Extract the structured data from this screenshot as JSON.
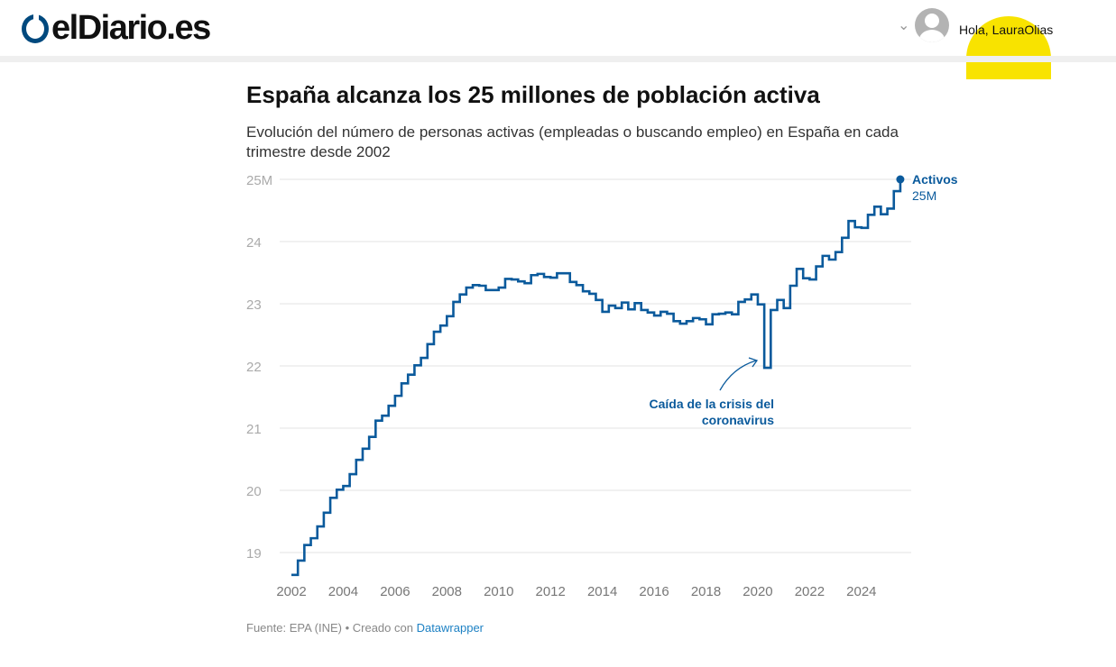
{
  "header": {
    "logo": "elDiario.es",
    "greeting": "Hola, LauraOlias"
  },
  "title": "España alcanza los 25 millones de población activa",
  "subtitle": "Evolución del número de personas activas (empleadas o buscando empleo) en España en cada trimestre desde 2002",
  "footer": {
    "source": "Fuente: EPA (INE) • Creado con ",
    "link": "Datawrapper"
  },
  "colors": {
    "line": "#0a5a9c",
    "grid": "#e3e3e3",
    "axis_text": "#aaaaaa",
    "highlight": "#f8e300"
  },
  "chart_data": {
    "type": "line",
    "step": true,
    "x_start": "2002 Q1",
    "frequency": "quarterly",
    "yunit": "millones",
    "ylim": [
      18.6,
      25
    ],
    "yticks": [
      19,
      20,
      21,
      22,
      23,
      24,
      25
    ],
    "ytick_labels": [
      "19",
      "20",
      "21",
      "22",
      "23",
      "24",
      "25M"
    ],
    "xticks": [
      2002,
      2004,
      2006,
      2008,
      2010,
      2012,
      2014,
      2016,
      2018,
      2020,
      2022,
      2024
    ],
    "grid": true,
    "series": [
      {
        "name": "Activos",
        "values": [
          18.64,
          18.87,
          19.12,
          19.23,
          19.42,
          19.64,
          19.88,
          20.01,
          20.07,
          20.26,
          20.49,
          20.67,
          20.86,
          21.12,
          21.2,
          21.36,
          21.52,
          21.72,
          21.86,
          22.01,
          22.13,
          22.35,
          22.55,
          22.65,
          22.8,
          23.03,
          23.15,
          23.26,
          23.3,
          23.29,
          23.22,
          23.22,
          23.26,
          23.4,
          23.39,
          23.36,
          23.33,
          23.46,
          23.48,
          23.43,
          23.42,
          23.49,
          23.49,
          23.35,
          23.3,
          23.2,
          23.16,
          23.06,
          22.87,
          22.97,
          22.93,
          23.02,
          22.91,
          23.01,
          22.9,
          22.86,
          22.81,
          22.87,
          22.84,
          22.72,
          22.68,
          22.72,
          22.77,
          22.75,
          22.67,
          22.83,
          22.84,
          22.86,
          22.83,
          23.03,
          23.07,
          23.15,
          22.99,
          21.97,
          22.9,
          23.06,
          22.93,
          23.29,
          23.56,
          23.41,
          23.39,
          23.6,
          23.77,
          23.71,
          23.83,
          24.06,
          24.33,
          24.23,
          24.22,
          24.43,
          24.56,
          24.44,
          24.53,
          24.81,
          25.0
        ]
      }
    ],
    "end_label": {
      "name": "Activos",
      "value": "25M"
    },
    "annotations": [
      {
        "text_line1": "Caída de la crisis del",
        "text_line2": "coronavirus",
        "target": "2020 Q2"
      }
    ]
  }
}
